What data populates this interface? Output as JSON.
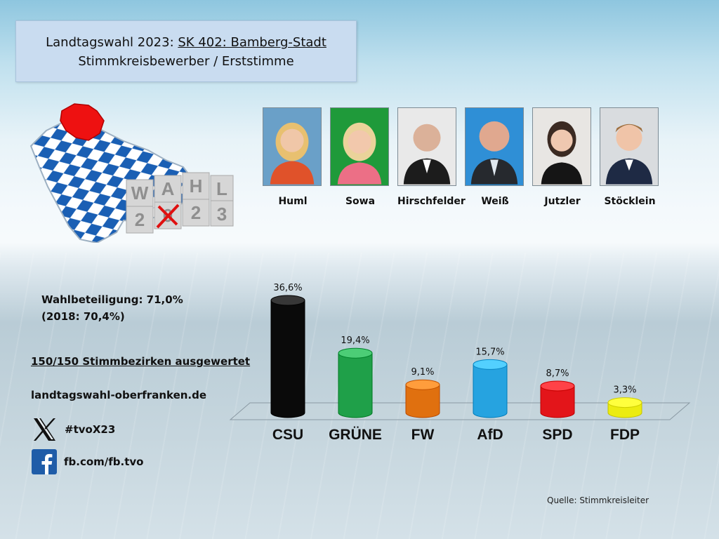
{
  "title": {
    "line1_prefix": "Landtagswahl 2023: ",
    "line1_link": "SK 402: Bamberg-Stadt",
    "line2": "Stimmkreisbewerber / Erststimme"
  },
  "logo": {
    "letters_top": [
      "W",
      "A",
      "H",
      "L"
    ],
    "letters_bottom": [
      "2",
      "0",
      "2",
      "3"
    ]
  },
  "candidates": [
    {
      "name": "Huml",
      "bg": "#6aa0c8"
    },
    {
      "name": "Sowa",
      "bg": "#1f9a3a"
    },
    {
      "name": "Hirschfelder",
      "bg": "#e9e9e9"
    },
    {
      "name": "Weiß",
      "bg": "#2f8fd6"
    },
    {
      "name": "Jutzler",
      "bg": "#e8e6e3"
    },
    {
      "name": "Stöcklein",
      "bg": "#d9dcdf"
    }
  ],
  "info": {
    "turnout": "Wahlbeteiligung: 71,0%",
    "turnout_prev": "(2018: 70,4%)",
    "counted": "150/150 Stimmbezirken ausgewertet",
    "website": "landtagswahl-oberfranken.de",
    "hashtag": "#tvoX23",
    "facebook": "fb.com/fb.tvo",
    "x_icon": "x-logo-icon",
    "fb_icon": "facebook-icon"
  },
  "chart_data": {
    "type": "bar",
    "categories": [
      "CSU",
      "GRÜNE",
      "FW",
      "AfD",
      "SPD",
      "FDP"
    ],
    "values": [
      36.6,
      19.4,
      9.1,
      15.7,
      8.7,
      3.3
    ],
    "labels": [
      "36,6%",
      "19,4%",
      "9,1%",
      "15,7%",
      "8,7%",
      "3,3%"
    ],
    "colors": [
      "#0a0a0a",
      "#1fa049",
      "#e0700f",
      "#26a3e0",
      "#e3151a",
      "#ecec10"
    ],
    "ylim": [
      0,
      36.6
    ],
    "grid": false
  },
  "source": "Quelle: Stimmkreisleiter"
}
